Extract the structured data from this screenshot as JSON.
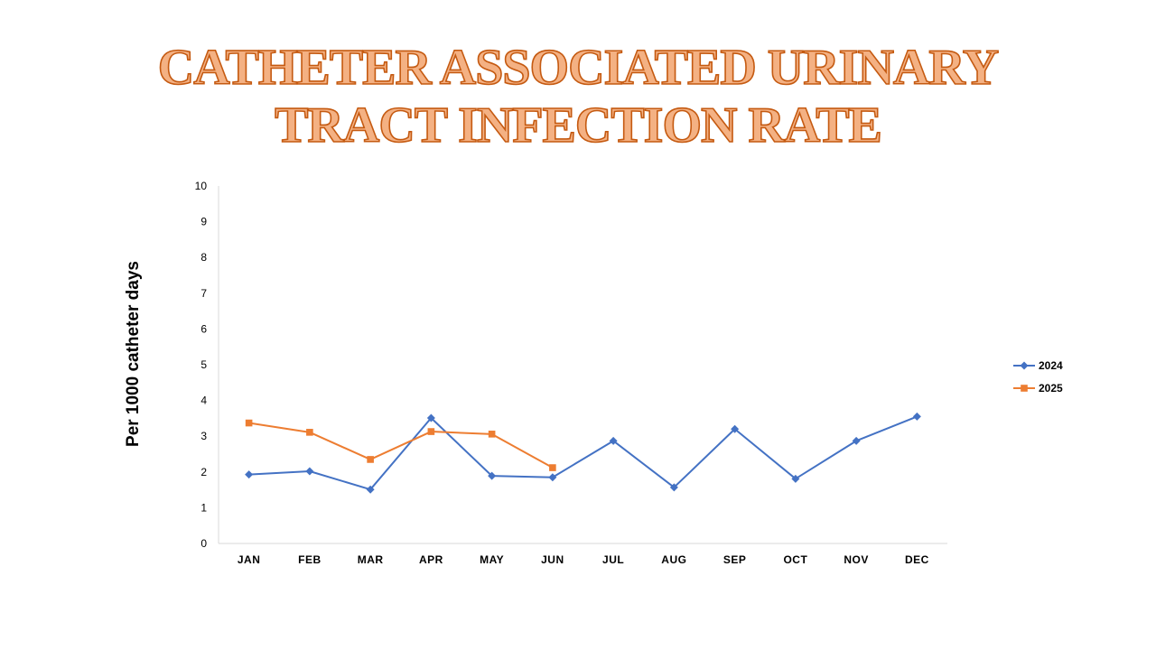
{
  "title": {
    "line1": "CATHETER ASSOCIATED URINARY",
    "line2": "TRACT INFECTION RATE"
  },
  "colors": {
    "title_fill": "#F4B183",
    "title_stroke": "#C55A11",
    "series_2024": "#4472C4",
    "series_2025": "#ED7D31",
    "axis": "#D9D9D9"
  },
  "chart_data": {
    "type": "line",
    "title": "CATHETER ASSOCIATED URINARY TRACT INFECTION RATE",
    "xlabel": "",
    "ylabel": "Per 1000 catheter days",
    "ylim": [
      0,
      10
    ],
    "yticks": [
      0,
      1,
      2,
      3,
      4,
      5,
      6,
      7,
      8,
      9,
      10
    ],
    "grid": false,
    "legend_position": "right",
    "categories": [
      "JAN",
      "FEB",
      "MAR",
      "APR",
      "MAY",
      "JUN",
      "JUL",
      "AUG",
      "SEP",
      "OCT",
      "NOV",
      "DEC"
    ],
    "series": [
      {
        "name": "2024",
        "marker": "diamond",
        "values": [
          1.93,
          2.02,
          1.51,
          3.51,
          1.89,
          1.85,
          2.87,
          1.57,
          3.2,
          1.81,
          2.87,
          3.55
        ]
      },
      {
        "name": "2025",
        "marker": "square",
        "values": [
          3.37,
          3.11,
          2.35,
          3.13,
          3.06,
          2.12,
          null,
          null,
          null,
          null,
          null,
          null
        ]
      }
    ]
  }
}
